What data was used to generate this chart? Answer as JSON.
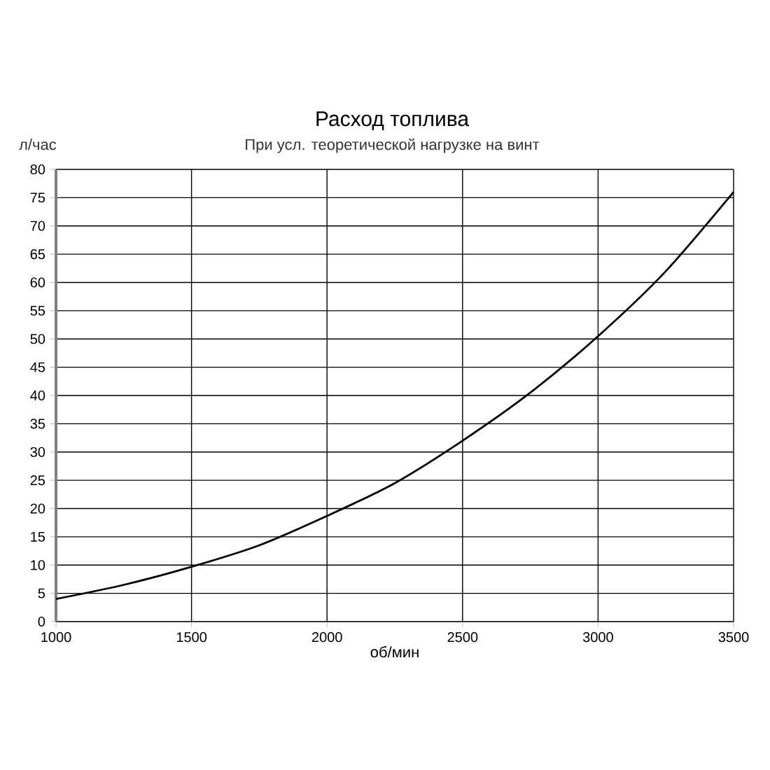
{
  "chart_data": {
    "type": "line",
    "title": "Расход топлива",
    "subtitle": "При усл. теоретической нагрузке на винт",
    "xlabel": "об/мин",
    "ylabel": "л/час",
    "x": [
      1000,
      1250,
      1500,
      1750,
      2000,
      2250,
      2500,
      2750,
      3000,
      3250,
      3500
    ],
    "series": [
      {
        "color": "#000000",
        "values": [
          4,
          6.5,
          9.7,
          13.5,
          18.7,
          24.5,
          32,
          40.5,
          50.5,
          62,
          76
        ]
      }
    ],
    "xlim": [
      1000,
      3500
    ],
    "xticks": [
      1000,
      1500,
      2000,
      2500,
      3000,
      3500
    ],
    "ylim": [
      0,
      80
    ],
    "yticks": [
      0,
      5,
      10,
      15,
      20,
      25,
      30,
      35,
      40,
      45,
      50,
      55,
      60,
      65,
      70,
      75,
      80
    ],
    "grid": true,
    "marker": "none",
    "line_style": "solid"
  }
}
